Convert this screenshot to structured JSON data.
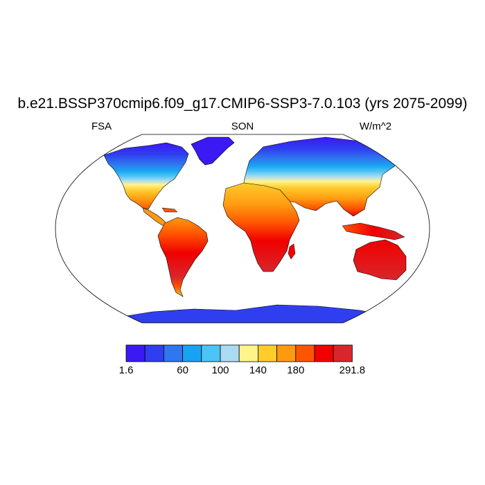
{
  "title": "b.e21.BSSP370cmip6.f09_g17.CMIP6-SSP3-7.0.103 (yrs 2075-2099)",
  "left_label": "FSA",
  "center_label": "SON",
  "right_label": "W/m^2",
  "colorbar": {
    "colors": [
      "#3a19f5",
      "#2f3ff0",
      "#2f76ef",
      "#17a3f3",
      "#4ac4f4",
      "#aadbf2",
      "#fff48c",
      "#ffcc2c",
      "#ff9a11",
      "#ff5500",
      "#f00000",
      "#d8262b"
    ],
    "tick_labels": [
      "1.6",
      "60",
      "100",
      "140",
      "180",
      "291.8"
    ]
  },
  "map": {
    "projection": "robinson",
    "ocean_color": "#ffffff",
    "coastline_color": "#000000"
  }
}
